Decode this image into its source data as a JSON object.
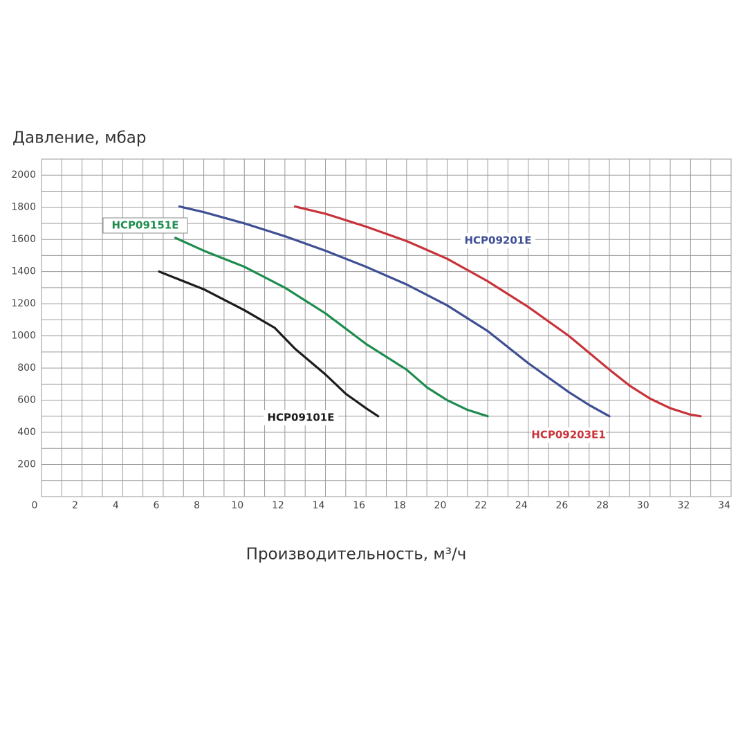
{
  "chart_data": {
    "type": "line",
    "ylabel": "Давление, мбар",
    "xlabel": "Производительность, м³/ч",
    "xlim": [
      0,
      34
    ],
    "ylim": [
      0,
      2100
    ],
    "xticks": [
      0,
      2,
      4,
      6,
      8,
      10,
      12,
      14,
      16,
      18,
      20,
      22,
      24,
      26,
      28,
      30,
      32,
      34
    ],
    "yticks": [
      200,
      400,
      600,
      800,
      1000,
      1200,
      1400,
      1600,
      1800,
      2000
    ],
    "x_minor_grid": [
      1,
      3,
      5,
      7,
      9,
      11,
      13,
      15,
      17,
      19,
      21,
      23,
      25,
      27,
      29,
      31,
      33
    ],
    "y_minor_grid": [
      0,
      100,
      300,
      500,
      700,
      900,
      1100,
      1300,
      1500,
      1700,
      1900,
      2100
    ],
    "grid": true,
    "series": [
      {
        "name": "HCP09101E",
        "color": "#1c1c1c",
        "x": [
          5.8,
          8,
          10,
          11.5,
          12.5,
          14,
          15,
          16,
          16.6
        ],
        "values": [
          1400,
          1290,
          1160,
          1050,
          920,
          760,
          640,
          550,
          500
        ]
      },
      {
        "name": "HCP09151E",
        "color": "#1e8c4e",
        "x": [
          6.6,
          8,
          10,
          12,
          14,
          16,
          18,
          19,
          20,
          21,
          22
        ],
        "values": [
          1610,
          1530,
          1430,
          1300,
          1140,
          950,
          790,
          680,
          600,
          540,
          500
        ]
      },
      {
        "name": "HCP09201E",
        "color": "#3f4f94",
        "x": [
          6.8,
          8,
          10,
          12,
          14,
          16,
          18,
          20,
          22,
          24,
          26,
          27,
          28
        ],
        "values": [
          1805,
          1770,
          1700,
          1620,
          1530,
          1430,
          1320,
          1190,
          1030,
          830,
          650,
          570,
          500
        ]
      },
      {
        "name": "HCP09203E1",
        "color": "#c8333a",
        "x": [
          12.5,
          14,
          16,
          18,
          20,
          22,
          24,
          26,
          28,
          29,
          30,
          31,
          32,
          32.5
        ],
        "values": [
          1805,
          1760,
          1680,
          1590,
          1480,
          1340,
          1180,
          1000,
          790,
          690,
          610,
          550,
          510,
          500
        ]
      }
    ]
  }
}
